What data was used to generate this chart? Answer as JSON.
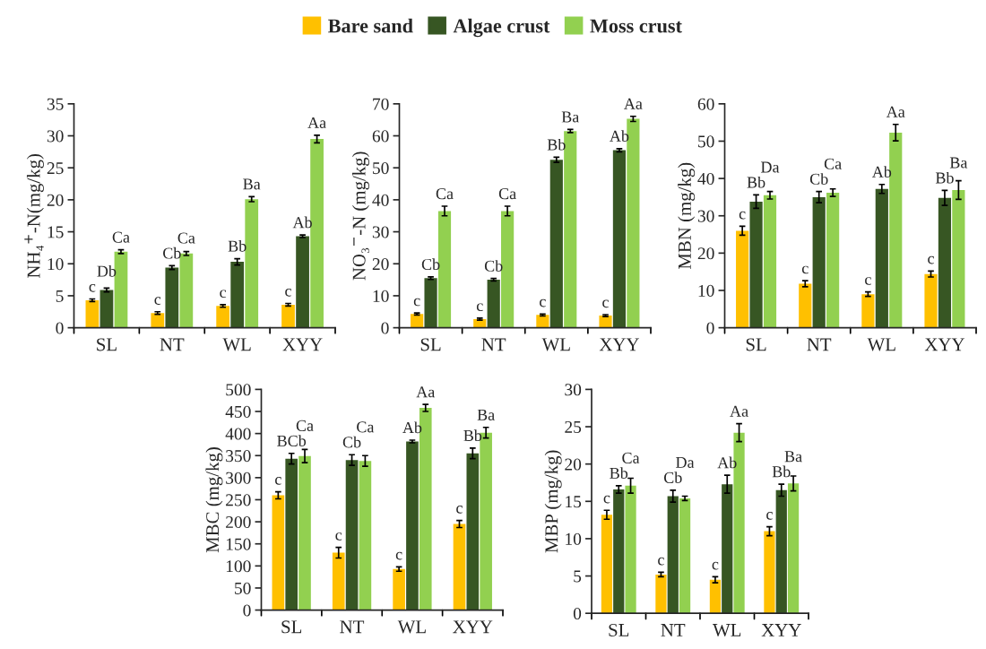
{
  "chart_data": [
    {
      "type": "bar",
      "ylabel": "NH₄$^{+}$-N(mg/kg)",
      "categories": [
        "SL",
        "NT",
        "WL",
        "XYY"
      ],
      "ylim": [
        0,
        35
      ],
      "yticks": [
        0,
        5,
        10,
        15,
        20,
        25,
        30,
        35
      ],
      "legend": "top",
      "series": [
        {
          "name": "Bare sand",
          "color": "#ffc000",
          "values": [
            4.3,
            2.3,
            3.4,
            3.6
          ],
          "errors": [
            0.2,
            0.2,
            0.2,
            0.2
          ],
          "value_labels": [
            "c",
            "c",
            "c",
            "c"
          ]
        },
        {
          "name": "Algae crust",
          "color": "#375623",
          "values": [
            5.9,
            9.4,
            10.3,
            14.3
          ],
          "errors": [
            0.3,
            0.3,
            0.5,
            0.2
          ],
          "value_labels": [
            "Db",
            "Cb",
            "Bb",
            "Ab"
          ]
        },
        {
          "name": "Moss crust",
          "color": "#92d050",
          "values": [
            11.9,
            11.6,
            20.1,
            29.5
          ],
          "errors": [
            0.3,
            0.3,
            0.4,
            0.6
          ],
          "value_labels": [
            "Ca",
            "Ca",
            "Ba",
            "Aa"
          ]
        }
      ]
    },
    {
      "type": "bar",
      "ylabel": "NO₃$^{−}$-N (mg/kg)",
      "categories": [
        "SL",
        "NT",
        "WL",
        "XYY"
      ],
      "ylim": [
        0,
        70
      ],
      "yticks": [
        0,
        10,
        20,
        30,
        40,
        50,
        60,
        70
      ],
      "series": [
        {
          "color": "#ffc000",
          "values": [
            4.3,
            2.7,
            4.0,
            3.8
          ],
          "errors": [
            0.3,
            0.3,
            0.3,
            0.3
          ],
          "value_labels": [
            "c",
            "c",
            "c",
            "c"
          ]
        },
        {
          "color": "#375623",
          "values": [
            15.5,
            15.0,
            52.5,
            55.5
          ],
          "errors": [
            0.4,
            0.4,
            0.8,
            0.5
          ],
          "value_labels": [
            "Cb",
            "Cb",
            "Bb",
            "Ab"
          ]
        },
        {
          "color": "#92d050",
          "values": [
            36.5,
            36.5,
            61.5,
            65.3
          ],
          "errors": [
            1.5,
            1.5,
            0.5,
            0.8
          ],
          "value_labels": [
            "Ca",
            "Ca",
            "Ba",
            "Aa"
          ]
        }
      ]
    },
    {
      "type": "bar",
      "ylabel": "MBN (mg/kg)",
      "categories": [
        "SL",
        "NT",
        "WL",
        "XYY"
      ],
      "ylim": [
        0,
        60
      ],
      "yticks": [
        0,
        10,
        20,
        30,
        40,
        50,
        60
      ],
      "series": [
        {
          "color": "#ffc000",
          "values": [
            26,
            11.8,
            9.0,
            14.4
          ],
          "errors": [
            1.2,
            0.8,
            0.6,
            0.8
          ],
          "value_labels": [
            "c",
            "c",
            "c",
            "c"
          ]
        },
        {
          "color": "#375623",
          "values": [
            33.8,
            35.0,
            37.2,
            34.8
          ],
          "errors": [
            1.8,
            1.5,
            1.2,
            2.0
          ],
          "value_labels": [
            "Bb",
            "Cb",
            "Ab",
            "Bb"
          ]
        },
        {
          "color": "#92d050",
          "values": [
            35.5,
            36.2,
            52.3,
            36.9
          ],
          "errors": [
            1.0,
            1.0,
            2.2,
            2.5
          ],
          "value_labels": [
            "Da",
            "Ca",
            "Aa",
            "Ba"
          ]
        }
      ]
    },
    {
      "type": "bar",
      "ylabel": "MBC (mg/kg)",
      "categories": [
        "SL",
        "NT",
        "WL",
        "XYY"
      ],
      "ylim": [
        0,
        500
      ],
      "yticks": [
        0,
        50,
        100,
        150,
        200,
        250,
        300,
        350,
        400,
        450,
        500
      ],
      "series": [
        {
          "color": "#ffc000",
          "values": [
            260,
            130,
            93,
            195
          ],
          "errors": [
            8,
            12,
            5,
            8
          ],
          "value_labels": [
            "c",
            "c",
            "c",
            "c"
          ]
        },
        {
          "color": "#375623",
          "values": [
            343,
            340,
            382,
            355
          ],
          "errors": [
            12,
            12,
            3,
            12
          ],
          "value_labels": [
            "BCb",
            "Cb",
            "Ab",
            "Bb"
          ]
        },
        {
          "color": "#92d050",
          "values": [
            349,
            338,
            458,
            402
          ],
          "errors": [
            15,
            12,
            8,
            12
          ],
          "value_labels": [
            "Ca",
            "Ca",
            "Aa",
            "Ba"
          ]
        }
      ]
    },
    {
      "type": "bar",
      "ylabel": "MBP (mg/kg)",
      "categories": [
        "SL",
        "NT",
        "WL",
        "XYY"
      ],
      "ylim": [
        0,
        30
      ],
      "yticks": [
        0,
        5,
        10,
        15,
        20,
        25,
        30
      ],
      "series": [
        {
          "color": "#ffc000",
          "values": [
            13.2,
            5.2,
            4.5,
            11.0
          ],
          "errors": [
            0.6,
            0.3,
            0.4,
            0.6
          ],
          "value_labels": [
            "c",
            "c",
            "c",
            "c"
          ]
        },
        {
          "color": "#375623",
          "values": [
            16.6,
            15.7,
            17.3,
            16.5
          ],
          "errors": [
            0.5,
            0.8,
            1.2,
            0.8
          ],
          "value_labels": [
            "Bb",
            "Cb",
            "Ab",
            "Bb"
          ]
        },
        {
          "color": "#92d050",
          "values": [
            17.1,
            15.4,
            24.2,
            17.4
          ],
          "errors": [
            1.0,
            0.3,
            1.2,
            1.0
          ],
          "value_labels": [
            "Ca",
            "Da",
            "Aa",
            "Ba"
          ]
        }
      ]
    }
  ]
}
